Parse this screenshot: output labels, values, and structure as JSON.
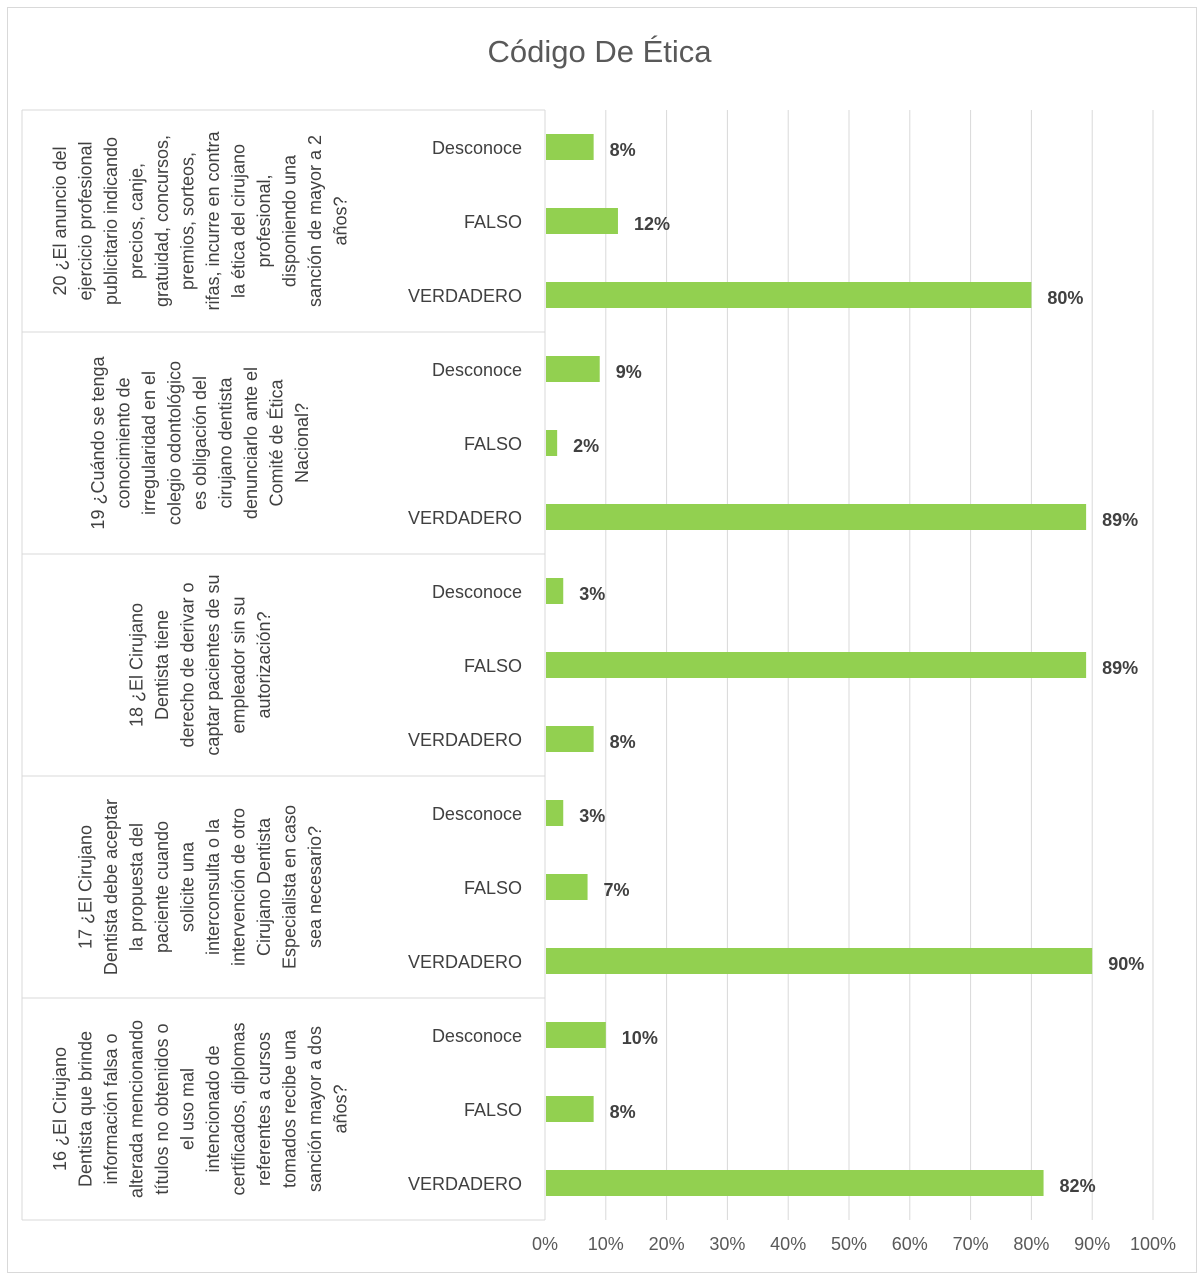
{
  "chart_data": {
    "type": "bar",
    "orientation": "horizontal",
    "title": "Código De Ética",
    "xlim": [
      0,
      100
    ],
    "x_ticks": [
      "0%",
      "10%",
      "20%",
      "30%",
      "40%",
      "50%",
      "60%",
      "70%",
      "80%",
      "90%",
      "100%"
    ],
    "grid": true,
    "bar_color": "#92d050",
    "groups": [
      {
        "label_lines": [
          "20 ¿El anuncio del",
          "ejercicio profesional",
          "publicitario indicando",
          "precios, canje,",
          "gratuidad, concursos,",
          "premios, sorteos,",
          "rifas, incurre en contra",
          "la ética del cirujano",
          "profesional,",
          "disponiendo una",
          "sanción de mayor a 2",
          "años?"
        ],
        "bars": [
          {
            "category": "Desconoce",
            "value": 8,
            "label": "8%"
          },
          {
            "category": "FALSO",
            "value": 12,
            "label": "12%"
          },
          {
            "category": "VERDADERO",
            "value": 80,
            "label": "80%"
          }
        ]
      },
      {
        "label_lines": [
          "19 ¿Cuándo se tenga",
          "conocimiento de",
          "irregularidad en el",
          "colegio odontológico",
          "es obligación del",
          "cirujano dentista",
          "denunciarlo ante el",
          "Comité de Ética",
          "Nacional?"
        ],
        "bars": [
          {
            "category": "Desconoce",
            "value": 9,
            "label": "9%"
          },
          {
            "category": "FALSO",
            "value": 2,
            "label": "2%"
          },
          {
            "category": "VERDADERO",
            "value": 89,
            "label": "89%"
          }
        ]
      },
      {
        "label_lines": [
          "18 ¿El Cirujano",
          "Dentista tiene",
          "derecho de derivar o",
          "captar pacientes de su",
          "empleador sin su",
          "autorización?"
        ],
        "bars": [
          {
            "category": "Desconoce",
            "value": 3,
            "label": "3%"
          },
          {
            "category": "FALSO",
            "value": 89,
            "label": "89%"
          },
          {
            "category": "VERDADERO",
            "value": 8,
            "label": "8%"
          }
        ]
      },
      {
        "label_lines": [
          "17 ¿El Cirujano",
          "Dentista debe aceptar",
          "la propuesta del",
          "paciente cuando",
          "solicite una",
          "interconsulta o la",
          "intervención de otro",
          "Cirujano Dentista",
          "Especialista en caso",
          "sea necesario?"
        ],
        "bars": [
          {
            "category": "Desconoce",
            "value": 3,
            "label": "3%"
          },
          {
            "category": "FALSO",
            "value": 7,
            "label": "7%"
          },
          {
            "category": "VERDADERO",
            "value": 90,
            "label": "90%"
          }
        ]
      },
      {
        "label_lines": [
          "16 ¿El Cirujano",
          "Dentista que brinde",
          "información falsa o",
          "alterada mencionando",
          "títulos no obtenidos o",
          "el uso mal",
          "intencionado de",
          "certificados, diplomas",
          "referentes a cursos",
          "tomados recibe una",
          "sanción mayor a dos",
          "años?"
        ],
        "bars": [
          {
            "category": "Desconoce",
            "value": 10,
            "label": "10%"
          },
          {
            "category": "FALSO",
            "value": 8,
            "label": "8%"
          },
          {
            "category": "VERDADERO",
            "value": 82,
            "label": "82%"
          }
        ]
      }
    ]
  }
}
